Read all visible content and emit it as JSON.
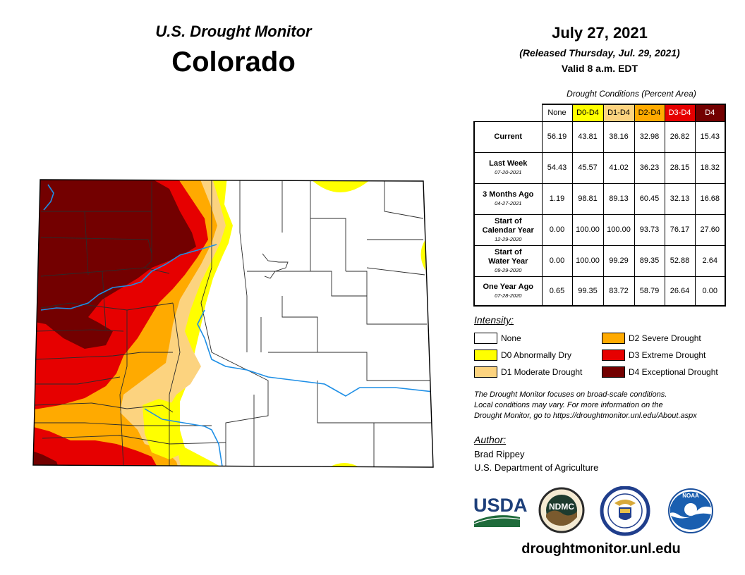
{
  "header": {
    "subtitle": "U.S. Drought Monitor",
    "state": "Colorado"
  },
  "date": {
    "valid_date": "July 27, 2021",
    "released": "(Released Thursday, Jul. 29, 2021)",
    "valid_time": "Valid 8 a.m. EDT"
  },
  "table": {
    "caption": "Drought Conditions (Percent Area)",
    "columns": [
      {
        "label": "None",
        "color": "#ffffff",
        "text_color": "#000000"
      },
      {
        "label": "D0-D4",
        "color": "#ffff00",
        "text_color": "#000000"
      },
      {
        "label": "D1-D4",
        "color": "#fcd37f",
        "text_color": "#000000"
      },
      {
        "label": "D2-D4",
        "color": "#ffaa00",
        "text_color": "#000000"
      },
      {
        "label": "D3-D4",
        "color": "#e60000",
        "text_color": "#ffffff"
      },
      {
        "label": "D4",
        "color": "#730000",
        "text_color": "#ffffff"
      }
    ],
    "rows": [
      {
        "label_lines": [
          "Current"
        ],
        "date": "",
        "values": [
          "56.19",
          "43.81",
          "38.16",
          "32.98",
          "26.82",
          "15.43"
        ]
      },
      {
        "label_lines": [
          "Last Week"
        ],
        "date": "07-20-2021",
        "values": [
          "54.43",
          "45.57",
          "41.02",
          "36.23",
          "28.15",
          "18.32"
        ]
      },
      {
        "label_lines": [
          "3 Months Ago"
        ],
        "date": "04-27-2021",
        "values": [
          "1.19",
          "98.81",
          "89.13",
          "60.45",
          "32.13",
          "16.68"
        ]
      },
      {
        "label_lines": [
          "Start of",
          "Calendar Year"
        ],
        "date": "12-29-2020",
        "values": [
          "0.00",
          "100.00",
          "100.00",
          "93.73",
          "76.17",
          "27.60"
        ]
      },
      {
        "label_lines": [
          "Start of",
          "Water Year"
        ],
        "date": "09-29-2020",
        "values": [
          "0.00",
          "100.00",
          "99.29",
          "89.35",
          "52.88",
          "2.64"
        ]
      },
      {
        "label_lines": [
          "One Year Ago"
        ],
        "date": "07-28-2020",
        "values": [
          "0.65",
          "99.35",
          "83.72",
          "58.79",
          "26.64",
          "0.00"
        ]
      }
    ]
  },
  "legend": {
    "title": "Intensity:",
    "items": [
      {
        "key": "none",
        "label": "None",
        "color": "#ffffff"
      },
      {
        "key": "d0",
        "label": "D0 Abnormally Dry",
        "color": "#ffff00"
      },
      {
        "key": "d1",
        "label": "D1 Moderate Drought",
        "color": "#fcd37f"
      },
      {
        "key": "d2",
        "label": "D2 Severe Drought",
        "color": "#ffaa00"
      },
      {
        "key": "d3",
        "label": "D3 Extreme Drought",
        "color": "#e60000"
      },
      {
        "key": "d4",
        "label": "D4 Exceptional Drought",
        "color": "#730000"
      }
    ]
  },
  "note": {
    "lines": [
      "The Drought Monitor focuses on broad-scale conditions.",
      "Local conditions may vary. For more information on the",
      "Drought Monitor, go to https://droughtmonitor.unl.edu/About.aspx"
    ]
  },
  "author": {
    "heading": "Author:",
    "name": "Brad Rippey",
    "org": "U.S. Department of Agriculture"
  },
  "logos": [
    {
      "name": "usda-logo",
      "text": "USDA"
    },
    {
      "name": "ndmc-logo",
      "text": "NDMC"
    },
    {
      "name": "commerce-seal",
      "text": ""
    },
    {
      "name": "noaa-logo",
      "text": "NOAA"
    }
  ],
  "map": {
    "river_color": "#1e8fe6"
  },
  "footer": {
    "url": "droughtmonitor.unl.edu"
  }
}
